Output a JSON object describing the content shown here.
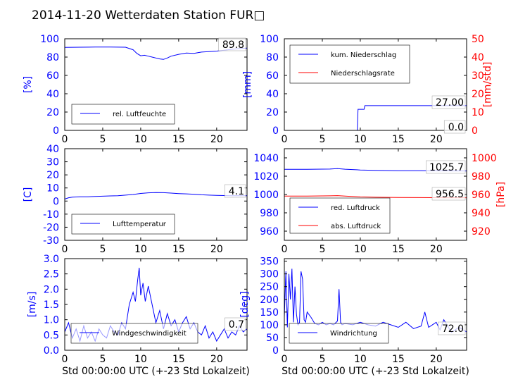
{
  "title": "2014-11-20 Wetterdaten Station FUR□",
  "colors": {
    "left_axis": "#0000ff",
    "right_axis": "#ff0000",
    "line_blue": "#0000ff",
    "line_red": "#ff0000",
    "line_lightblue": "#8080ff"
  },
  "chart_data": [
    {
      "type": "line",
      "ylabel": "[%]",
      "xlim": [
        0,
        24
      ],
      "ylim": [
        0,
        100
      ],
      "xticks": [
        0,
        5,
        10,
        15,
        20
      ],
      "yticks": [
        0,
        20,
        40,
        60,
        80,
        100
      ],
      "legend": {
        "placement": "lower-left",
        "entries": [
          "rel. Luftfeuchte"
        ]
      },
      "annotation": "89.8",
      "series": [
        {
          "name": "rel. Luftfeuchte",
          "color": "#0000ff",
          "x": [
            0,
            2,
            4,
            6,
            8,
            9,
            9.5,
            10,
            10.5,
            11,
            11.5,
            12,
            12.5,
            13,
            13.5,
            14,
            15,
            16,
            17,
            18,
            19,
            20,
            21,
            22,
            23,
            24
          ],
          "y": [
            90.5,
            90.8,
            90.9,
            91,
            90.8,
            88,
            84,
            81.5,
            82,
            81,
            80,
            79,
            78,
            77.5,
            79,
            81,
            83,
            84.5,
            84,
            85.5,
            86,
            86.5,
            87.5,
            88.5,
            89.3,
            89.8
          ]
        }
      ]
    },
    {
      "type": "line",
      "ylabel": "[mm]",
      "y2label": "[mm/std]",
      "xlim": [
        0,
        24
      ],
      "ylim": [
        0,
        100
      ],
      "y2lim": [
        0,
        50
      ],
      "xticks": [
        0,
        5,
        10,
        15,
        20
      ],
      "yticks": [
        0,
        20,
        40,
        60,
        80,
        100
      ],
      "y2ticks": [
        0,
        10,
        20,
        30,
        40,
        50
      ],
      "legend": {
        "placement": "top-left",
        "entries": [
          "kum. Niederschlag",
          "Niederschlagsrate"
        ]
      },
      "annotations": [
        "27.00",
        "0.0"
      ],
      "series": [
        {
          "name": "kum. Niederschlag",
          "color": "#0000ff",
          "axis": "left",
          "x": [
            0,
            9.6,
            9.7,
            10.5,
            10.6,
            24
          ],
          "y": [
            0,
            0,
            23,
            23,
            27,
            27
          ]
        },
        {
          "name": "Niederschlagsrate",
          "color": "#ff0000",
          "axis": "right",
          "x": [
            0,
            24
          ],
          "y": [
            0,
            0
          ]
        }
      ]
    },
    {
      "type": "line",
      "ylabel": "[C]",
      "xlim": [
        0,
        24
      ],
      "ylim": [
        -30,
        40
      ],
      "xticks": [
        0,
        5,
        10,
        15,
        20
      ],
      "yticks": [
        -30,
        -20,
        -10,
        0,
        10,
        20,
        30,
        40
      ],
      "legend": {
        "placement": "lower-left",
        "entries": [
          "Lufttemperatur"
        ]
      },
      "annotation": "4.1",
      "series": [
        {
          "name": "Lufttemperatur",
          "color": "#0000ff",
          "x": [
            0,
            0.5,
            1,
            2,
            3,
            4,
            5,
            6,
            7,
            8,
            9,
            10,
            11,
            12,
            13,
            14,
            15,
            16,
            17,
            18,
            19,
            20,
            21,
            22,
            23,
            24
          ],
          "y": [
            1.5,
            2.5,
            3,
            3.2,
            3.3,
            3.5,
            3.7,
            3.9,
            4.1,
            4.5,
            5,
            5.8,
            6.3,
            6.5,
            6.4,
            6.1,
            5.7,
            5.5,
            5.2,
            4.8,
            4.5,
            4.3,
            4.2,
            4.1,
            4.1,
            4.1
          ]
        }
      ]
    },
    {
      "type": "line",
      "y2label": "[hPa]",
      "xlim": [
        0,
        24
      ],
      "ylim": [
        950,
        1050
      ],
      "y2lim": [
        910,
        1010
      ],
      "xticks": [
        0,
        5,
        10,
        15,
        20
      ],
      "yticks": [
        960,
        980,
        1000,
        1020,
        1040
      ],
      "y2ticks": [
        920,
        940,
        960,
        980,
        1000
      ],
      "legend": {
        "placement": "lower-left",
        "entries": [
          "red. Luftdruck",
          "abs. Luftdruck"
        ]
      },
      "annotations": [
        "1025.7",
        "956.5"
      ],
      "series": [
        {
          "name": "red. Luftdruck",
          "color": "#0000ff",
          "axis": "left",
          "x": [
            0,
            3,
            6,
            7,
            8,
            10,
            12,
            15,
            18,
            21,
            24
          ],
          "y": [
            1027.5,
            1027.5,
            1027.8,
            1028.2,
            1027.6,
            1026.8,
            1026.3,
            1026,
            1025.9,
            1025.8,
            1025.7
          ]
        },
        {
          "name": "abs. Luftdruck",
          "color": "#ff0000",
          "axis": "right",
          "x": [
            0,
            3,
            6,
            7,
            8,
            10,
            12,
            15,
            18,
            21,
            24
          ],
          "y": [
            958.2,
            958.2,
            958.5,
            958.8,
            958.2,
            957.4,
            957,
            956.8,
            956.6,
            956.5,
            956.5
          ]
        }
      ]
    },
    {
      "type": "line",
      "ylabel": "[m/s]",
      "xlabel": "Std 00:00:00 UTC (+-23 Std Lokalzeit)",
      "xlim": [
        0,
        24
      ],
      "ylim": [
        0,
        3
      ],
      "xticks": [
        0,
        5,
        10,
        15,
        20
      ],
      "yticks": [
        0.0,
        0.5,
        1.0,
        1.5,
        2.0,
        2.5,
        3.0
      ],
      "legend": {
        "placement": "lower-center",
        "entries": [
          "Windgeschwindigkeit"
        ]
      },
      "annotation": "0.7",
      "series": [
        {
          "name": "Windgeschwindigkeit",
          "color": "#0000ff",
          "x": [
            0,
            0.5,
            1,
            1.5,
            2,
            2.5,
            3,
            3.5,
            4,
            4.5,
            5,
            5.5,
            6,
            6.5,
            7,
            7.5,
            8,
            8.5,
            9,
            9.3,
            9.6,
            9.8,
            10,
            10.3,
            10.6,
            11,
            11.5,
            12,
            12.5,
            13,
            13.5,
            14,
            14.5,
            15,
            15.5,
            16,
            16.5,
            17,
            17.5,
            18,
            18.5,
            19,
            19.5,
            20,
            20.5,
            21,
            21.5,
            22,
            22.5,
            23,
            23.5,
            24
          ],
          "y": [
            0.6,
            0.9,
            0.4,
            0.7,
            0.3,
            0.8,
            0.4,
            0.6,
            0.3,
            0.7,
            0.5,
            0.4,
            0.8,
            0.6,
            0.5,
            0.9,
            0.7,
            1.5,
            1.9,
            1.6,
            2.3,
            2.7,
            1.8,
            2.2,
            1.6,
            2.1,
            1.5,
            0.9,
            1.3,
            0.7,
            1.2,
            0.8,
            1.0,
            0.6,
            0.9,
            1.1,
            0.7,
            0.9,
            0.6,
            0.5,
            0.8,
            0.4,
            0.6,
            0.3,
            0.5,
            0.7,
            0.4,
            0.6,
            0.5,
            0.8,
            0.6,
            0.7
          ]
        }
      ]
    },
    {
      "type": "line",
      "ylabel": "[deg]",
      "xlabel": "Std 00:00:00 UTC (+-23 Std Lokalzeit)",
      "xlim": [
        0,
        24
      ],
      "ylim": [
        0,
        360
      ],
      "xticks": [
        0,
        5,
        10,
        15,
        20
      ],
      "yticks": [
        0,
        50,
        100,
        150,
        200,
        250,
        300,
        350
      ],
      "legend": {
        "placement": "lower-left",
        "entries": [
          "Windrichtung"
        ]
      },
      "annotation": "72.0",
      "series": [
        {
          "name": "Windrichtung",
          "color": "#0000ff",
          "x": [
            0,
            0.2,
            0.4,
            0.6,
            0.8,
            1,
            1.2,
            1.4,
            1.6,
            1.8,
            2,
            2.2,
            2.4,
            2.6,
            2.8,
            3,
            3.5,
            4,
            4.5,
            5,
            5.5,
            6,
            6.5,
            7,
            7.2,
            7.4,
            7.6,
            8,
            9,
            10,
            11,
            12,
            13,
            14,
            15,
            16,
            17,
            18,
            18.5,
            19,
            19.5,
            20,
            20.5,
            21,
            22,
            23,
            24
          ],
          "y": [
            130,
            310,
            90,
            300,
            200,
            320,
            110,
            250,
            140,
            100,
            110,
            310,
            280,
            120,
            110,
            150,
            130,
            105,
            100,
            110,
            100,
            105,
            100,
            115,
            240,
            110,
            100,
            105,
            100,
            110,
            100,
            95,
            110,
            100,
            90,
            110,
            85,
            95,
            150,
            90,
            100,
            110,
            80,
            120,
            70,
            90,
            72
          ]
        }
      ]
    }
  ]
}
